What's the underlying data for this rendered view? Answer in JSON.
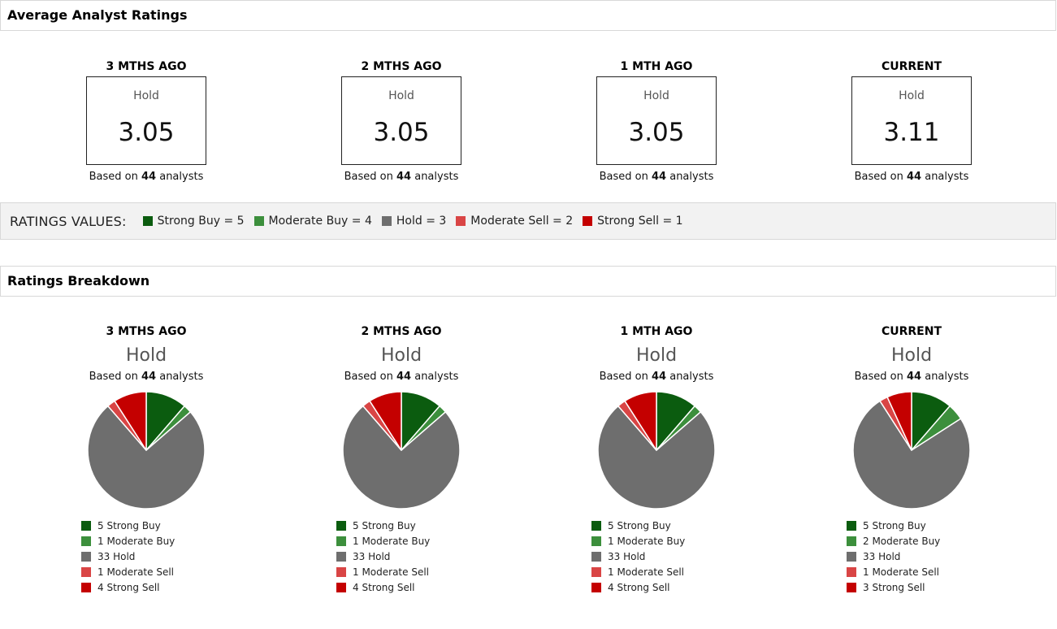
{
  "colors": {
    "strong_buy": "#0b5c0f",
    "moderate_buy": "#3c8f3c",
    "hold": "#6e6e6e",
    "moderate_sell": "#d94545",
    "strong_sell": "#c40000"
  },
  "average_section": {
    "title": "Average Analyst Ratings",
    "based_prefix": "Based on ",
    "based_suffix": " analysts",
    "columns": [
      {
        "label": "3 MTHS AGO",
        "rating": "Hold",
        "value": "3.05",
        "analysts": "44"
      },
      {
        "label": "2 MTHS AGO",
        "rating": "Hold",
        "value": "3.05",
        "analysts": "44"
      },
      {
        "label": "1 MTH AGO",
        "rating": "Hold",
        "value": "3.05",
        "analysts": "44"
      },
      {
        "label": "CURRENT",
        "rating": "Hold",
        "value": "3.11",
        "analysts": "44"
      }
    ]
  },
  "ratings_values": {
    "title": "RATINGS VALUES:",
    "items": [
      {
        "label": "Strong Buy = 5",
        "key": "strong_buy"
      },
      {
        "label": "Moderate Buy = 4",
        "key": "moderate_buy"
      },
      {
        "label": "Hold = 3",
        "key": "hold"
      },
      {
        "label": "Moderate Sell = 2",
        "key": "moderate_sell"
      },
      {
        "label": "Strong Sell = 1",
        "key": "strong_sell"
      }
    ]
  },
  "breakdown_section": {
    "title": "Ratings Breakdown",
    "based_prefix": "Based on ",
    "based_suffix": " analysts",
    "columns": [
      {
        "label": "3 MTHS AGO",
        "rating": "Hold",
        "analysts": "44",
        "legend": [
          "5 Strong Buy",
          "1 Moderate Buy",
          "33 Hold",
          "1 Moderate Sell",
          "4 Strong Sell"
        ]
      },
      {
        "label": "2 MTHS AGO",
        "rating": "Hold",
        "analysts": "44",
        "legend": [
          "5 Strong Buy",
          "1 Moderate Buy",
          "33 Hold",
          "1 Moderate Sell",
          "4 Strong Sell"
        ]
      },
      {
        "label": "1 MTH AGO",
        "rating": "Hold",
        "analysts": "44",
        "legend": [
          "5 Strong Buy",
          "1 Moderate Buy",
          "33 Hold",
          "1 Moderate Sell",
          "4 Strong Sell"
        ]
      },
      {
        "label": "CURRENT",
        "rating": "Hold",
        "analysts": "44",
        "legend": [
          "5 Strong Buy",
          "2 Moderate Buy",
          "33 Hold",
          "1 Moderate Sell",
          "3 Strong Sell"
        ]
      }
    ]
  },
  "chart_data": [
    {
      "type": "pie",
      "categories": [
        "Strong Buy",
        "Moderate Buy",
        "Hold",
        "Moderate Sell",
        "Strong Sell"
      ],
      "values": [
        5,
        1,
        33,
        1,
        4
      ]
    },
    {
      "type": "pie",
      "categories": [
        "Strong Buy",
        "Moderate Buy",
        "Hold",
        "Moderate Sell",
        "Strong Sell"
      ],
      "values": [
        5,
        1,
        33,
        1,
        4
      ]
    },
    {
      "type": "pie",
      "categories": [
        "Strong Buy",
        "Moderate Buy",
        "Hold",
        "Moderate Sell",
        "Strong Sell"
      ],
      "values": [
        5,
        1,
        33,
        1,
        4
      ]
    },
    {
      "type": "pie",
      "categories": [
        "Strong Buy",
        "Moderate Buy",
        "Hold",
        "Moderate Sell",
        "Strong Sell"
      ],
      "values": [
        5,
        2,
        33,
        1,
        3
      ]
    }
  ]
}
